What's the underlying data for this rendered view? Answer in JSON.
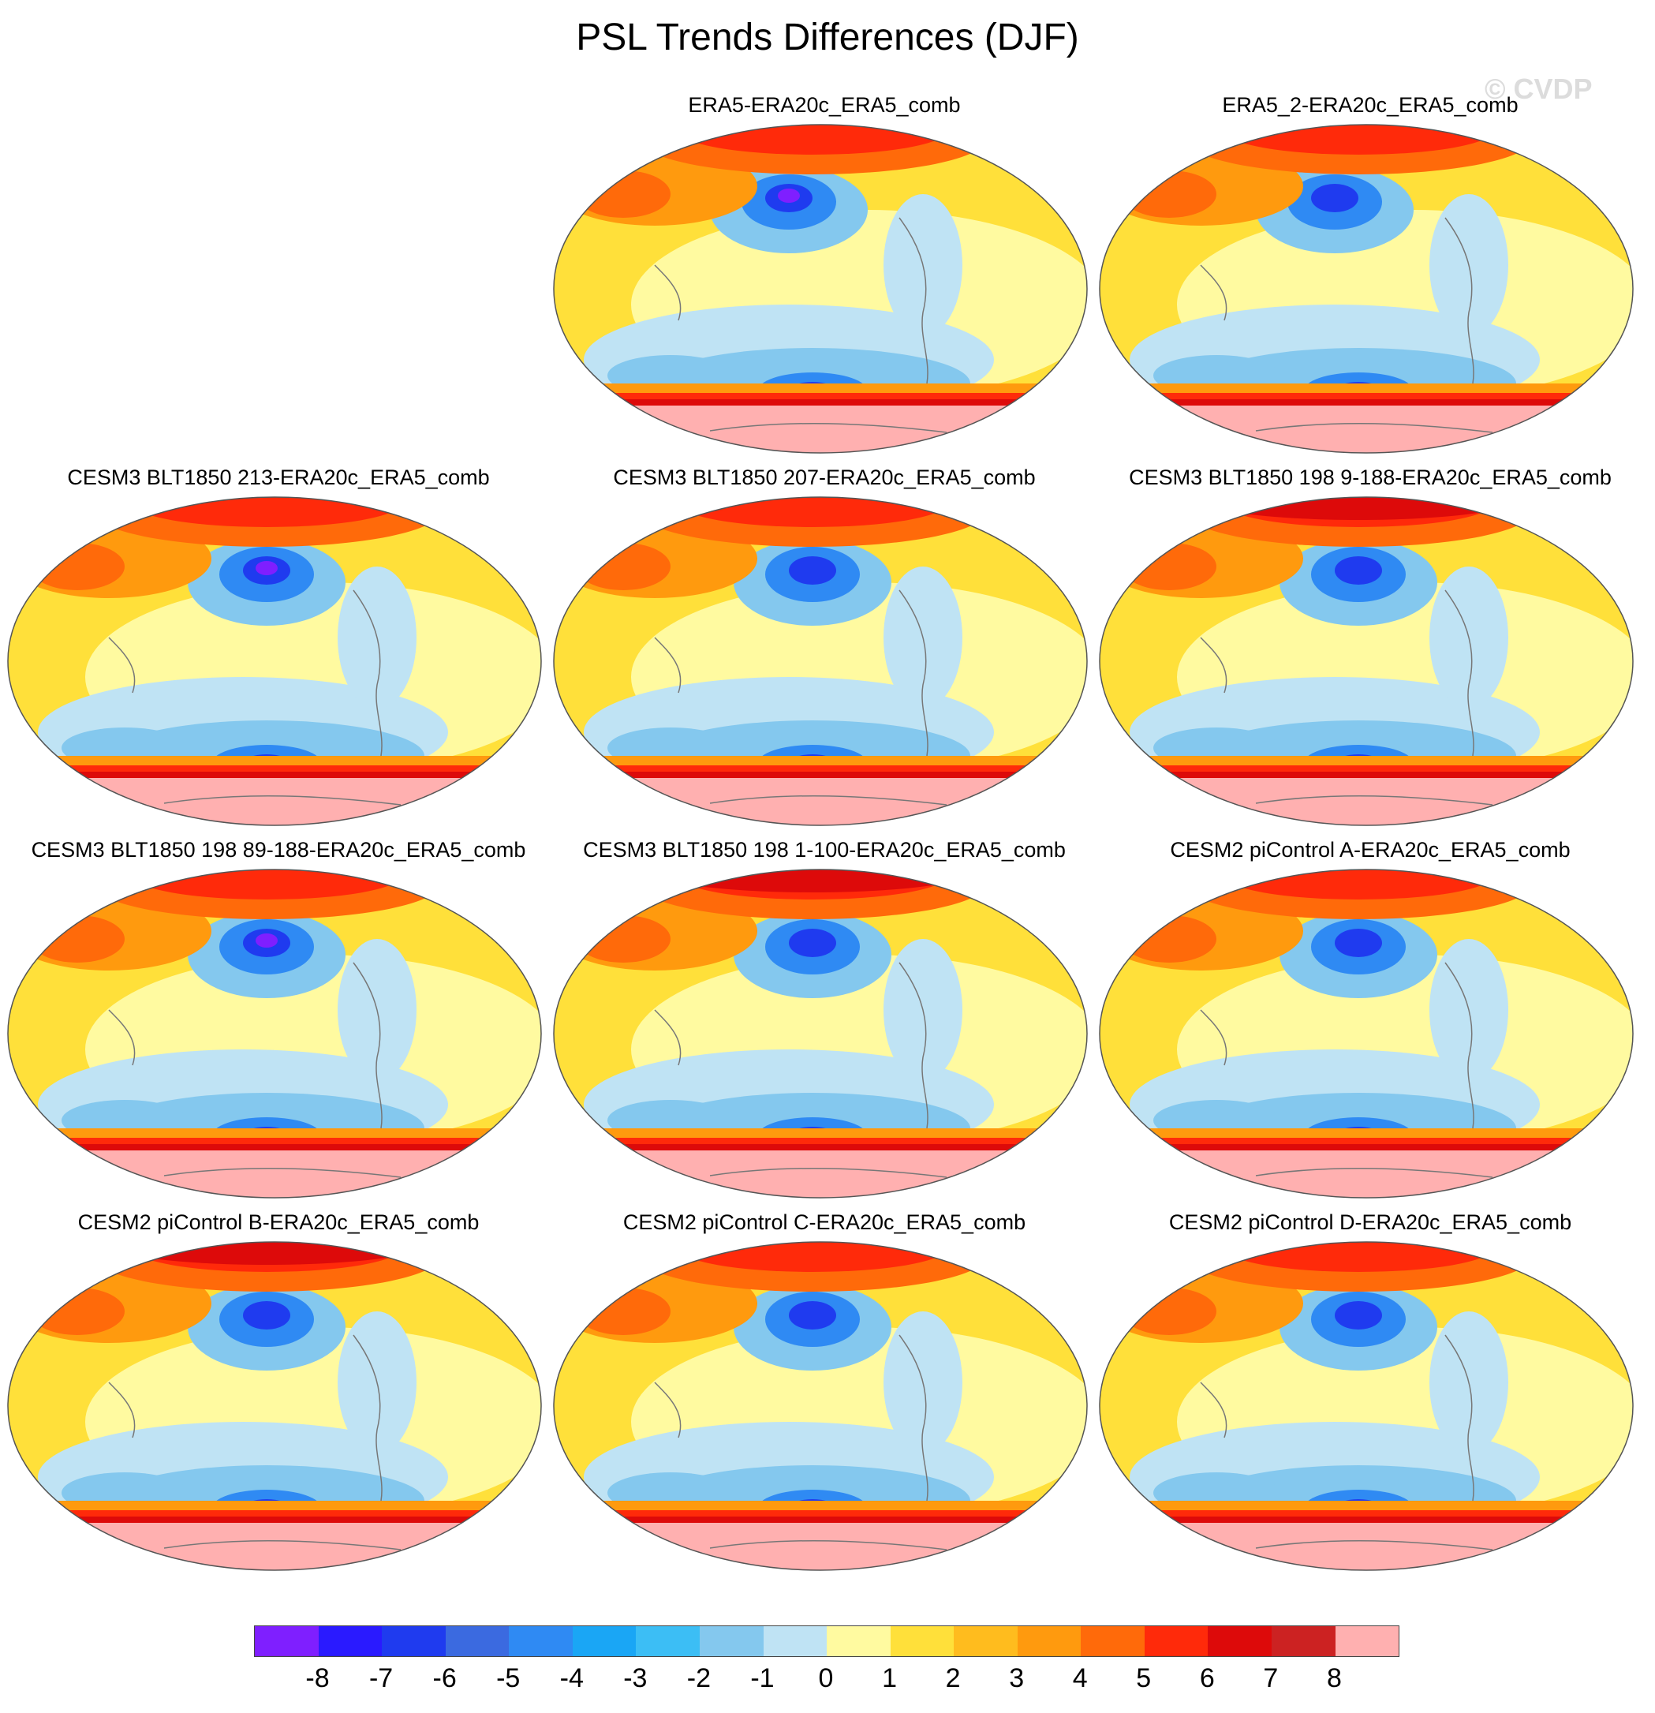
{
  "title": "PSL Trends Differences (DJF)",
  "watermark": "© CVDP",
  "panels": [
    {
      "title": "ERA5-ERA20c_ERA5_comb"
    },
    {
      "title": "ERA5_2-ERA20c_ERA5_comb"
    },
    {
      "title": "CESM3 BLT1850 213-ERA20c_ERA5_comb"
    },
    {
      "title": "CESM3 BLT1850 207-ERA20c_ERA5_comb"
    },
    {
      "title": "CESM3 BLT1850 198 9-188-ERA20c_ERA5_comb"
    },
    {
      "title": "CESM3 BLT1850 198 89-188-ERA20c_ERA5_comb"
    },
    {
      "title": "CESM3 BLT1850 198 1-100-ERA20c_ERA5_comb"
    },
    {
      "title": "CESM2 piControl A-ERA20c_ERA5_comb"
    },
    {
      "title": "CESM2 piControl B-ERA20c_ERA5_comb"
    },
    {
      "title": "CESM2 piControl C-ERA20c_ERA5_comb"
    },
    {
      "title": "CESM2 piControl D-ERA20c_ERA5_comb"
    }
  ],
  "colorbar": {
    "colors": [
      "#7f1fff",
      "#2a1aff",
      "#1f3bef",
      "#3b6ae0",
      "#2f8af3",
      "#1aa6f5",
      "#3cbef5",
      "#84c8ee",
      "#bfe3f4",
      "#fffaa0",
      "#ffe03a",
      "#ffbc1e",
      "#ff9a0e",
      "#ff6a0a",
      "#ff2a0a",
      "#dd0a0a",
      "#cc2222",
      "#ffb0b0"
    ],
    "ticks": [
      "-8",
      "-7",
      "-6",
      "-5",
      "-4",
      "-3",
      "-2",
      "-1",
      "0",
      "1",
      "2",
      "3",
      "4",
      "5",
      "6",
      "7",
      "8"
    ]
  }
}
